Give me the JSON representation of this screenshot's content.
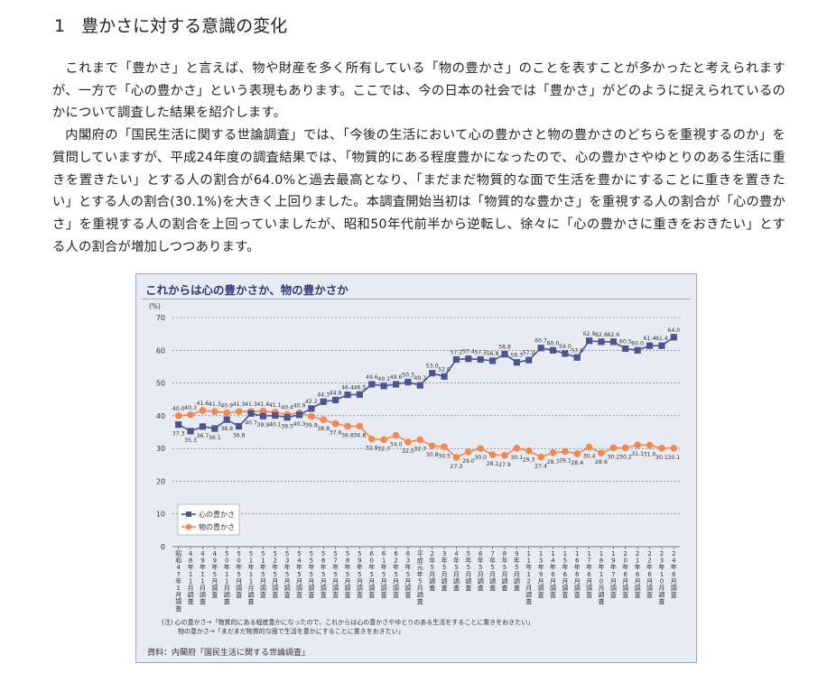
{
  "section": {
    "number": "1",
    "title": "豊かさに対する意識の変化"
  },
  "paragraphs": [
    "これまで「豊かさ」と言えば、物や財産を多く所有している「物の豊かさ」のことを表すことが多かったと考えられますが、一方で「心の豊かさ」という表現もあります。ここでは、今の日本の社会では「豊かさ」がどのように捉えられているのかについて調査した結果を紹介します。",
    "内閣府の「国民生活に関する世論調査」では、「今後の生活において心の豊かさと物の豊かさのどちらを重視するのか」を質問していますが、平成24年度の調査結果では、「物質的にある程度豊かになったので、心の豊かさやゆとりのある生活に重きを置きたい」とする人の割合が64.0%と過去最高となり、「まだまだ物質的な面で生活を豊かにすることに重きを置きたい」とする人の割合(30.1%)を大きく上回りました。本調査開始当初は「物質的な豊かさ」を重視する人の割合が「心の豊かさ」を重視する人の割合を上回っていましたが、昭和50年代前半から逆転し、徐々に「心の豊かさに重きをおきたい」とする人の割合が増加しつつあります。"
  ],
  "chart": {
    "title": "これからは心の豊かさか、物の豊かさか",
    "note_line1": "(注) 心の豊かさ→「物質的にある程度豊かになったので、これからは心の豊かさやゆとりのある生活をすることに重きをおきたい」",
    "note_line2": "物の豊かさ→「まだまだ物質的な面で生活を豊かにすることに重きをおきたい」",
    "source": "資料：内閣府「国民生活に関する世論調査」"
  },
  "chart_data": {
    "type": "line",
    "ylabel": "(%)",
    "ylim": [
      0,
      70
    ],
    "yticks": [
      0,
      10,
      20,
      30,
      40,
      50,
      60,
      70
    ],
    "grid": true,
    "legend_position": "bottom-left",
    "colors": {
      "kokoro": "#4a5590",
      "mono": "#f08a50",
      "grid": "#666666"
    },
    "categories": [
      "昭和47年1月調査",
      "48年11月調査",
      "49年11月調査",
      "49年5月調査",
      "50年11月調査",
      "50年5月調査",
      "51年11月調査",
      "51年5月調査",
      "52年5月調査",
      "53年5月調査",
      "54年5月調査",
      "55年5月調査",
      "56年5月調査",
      "57年5月調査",
      "58年5月調査",
      "59年5月調査",
      "60年5月調査",
      "61年5月調査",
      "62年5月調査",
      "63年5月調査",
      "平成元年5月調査",
      "2年5月調査",
      "3年5月調査",
      "4年5月調査",
      "5年5月調査",
      "6年5月調査",
      "7年5月調査",
      "8年5月調査",
      "9年5月調査",
      "11年12月調査",
      "13年9月調査",
      "14年6月調査",
      "15年6月調査",
      "16年6月調査",
      "17年6月調査",
      "18年10月調査",
      "19年7月調査",
      "20年6月調査",
      "21年6月調査",
      "22年6月調査",
      "23年10月調査",
      "24年6月調査"
    ],
    "series": [
      {
        "name": "心の豊かさ",
        "values": [
          37.3,
          35.3,
          36.7,
          36.1,
          38.8,
          36.8,
          40.7,
          39.9,
          40.1,
          39.5,
          40.3,
          42.2,
          44.3,
          44.8,
          46.4,
          46.5,
          49.6,
          49.1,
          49.6,
          50.3,
          49.3,
          53.0,
          52.0,
          57.2,
          57.4,
          57.2,
          56.8,
          58.8,
          56.3,
          57.0,
          60.7,
          60.0,
          59.0,
          57.8,
          62.9,
          62.6,
          62.6,
          60.5,
          60.0,
          61.4,
          61.4,
          64.0
        ]
      },
      {
        "name": "物の豊かさ",
        "values": [
          40.0,
          40.3,
          41.6,
          41.3,
          40.9,
          41.3,
          41.3,
          41.4,
          41.1,
          40.4,
          40.9,
          39.8,
          38.8,
          37.6,
          36.8,
          36.8,
          32.9,
          32.7,
          34.0,
          32.0,
          32.7,
          30.8,
          30.5,
          27.3,
          29.0,
          30.0,
          28.1,
          27.9,
          30.1,
          29.3,
          27.4,
          28.7,
          29.1,
          28.4,
          30.4,
          28.6,
          30.2,
          30.2,
          31.1,
          31.0,
          30.1,
          30.1
        ]
      }
    ]
  }
}
